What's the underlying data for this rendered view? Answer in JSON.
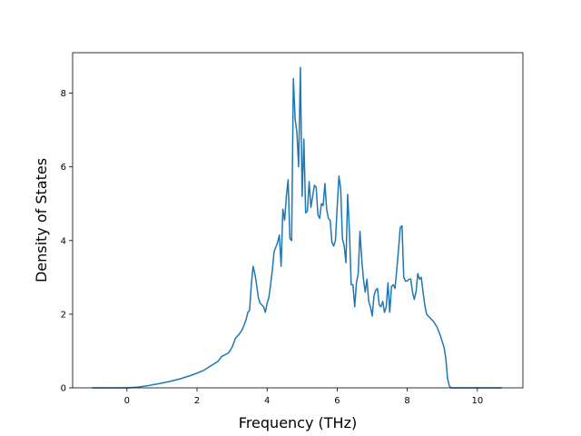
{
  "chart_data": {
    "type": "line",
    "title": "",
    "xlabel": "Frequency (THz)",
    "ylabel": "Density of States",
    "xlim": [
      -1.55,
      11.3
    ],
    "ylim": [
      0,
      9.1
    ],
    "xticks": [
      0,
      2,
      4,
      6,
      8,
      10
    ],
    "yticks": [
      0,
      2,
      4,
      6,
      8
    ],
    "grid": false,
    "line_color": "#1f77b4",
    "series": [
      {
        "points": [
          [
            -1.0,
            0
          ],
          [
            -0.5,
            0
          ],
          [
            0.0,
            0
          ],
          [
            0.3,
            0.02
          ],
          [
            0.6,
            0.06
          ],
          [
            0.9,
            0.11
          ],
          [
            1.2,
            0.17
          ],
          [
            1.5,
            0.24
          ],
          [
            1.8,
            0.33
          ],
          [
            2.0,
            0.4
          ],
          [
            2.2,
            0.48
          ],
          [
            2.4,
            0.6
          ],
          [
            2.6,
            0.72
          ],
          [
            2.7,
            0.85
          ],
          [
            2.9,
            0.95
          ],
          [
            3.0,
            1.1
          ],
          [
            3.1,
            1.35
          ],
          [
            3.2,
            1.45
          ],
          [
            3.3,
            1.6
          ],
          [
            3.4,
            1.85
          ],
          [
            3.45,
            2.05
          ],
          [
            3.5,
            2.1
          ],
          [
            3.55,
            2.8
          ],
          [
            3.6,
            3.3
          ],
          [
            3.65,
            3.1
          ],
          [
            3.7,
            2.8
          ],
          [
            3.75,
            2.45
          ],
          [
            3.8,
            2.3
          ],
          [
            3.85,
            2.25
          ],
          [
            3.9,
            2.2
          ],
          [
            3.95,
            2.05
          ],
          [
            4.0,
            2.3
          ],
          [
            4.05,
            2.45
          ],
          [
            4.1,
            2.8
          ],
          [
            4.15,
            3.2
          ],
          [
            4.2,
            3.7
          ],
          [
            4.3,
            3.95
          ],
          [
            4.35,
            4.15
          ],
          [
            4.4,
            3.3
          ],
          [
            4.45,
            4.85
          ],
          [
            4.5,
            4.55
          ],
          [
            4.55,
            5.2
          ],
          [
            4.6,
            5.65
          ],
          [
            4.65,
            4.05
          ],
          [
            4.7,
            4.0
          ],
          [
            4.75,
            8.4
          ],
          [
            4.8,
            7.3
          ],
          [
            4.85,
            6.95
          ],
          [
            4.9,
            6.0
          ],
          [
            4.95,
            8.7
          ],
          [
            5.0,
            5.2
          ],
          [
            5.05,
            6.75
          ],
          [
            5.1,
            4.75
          ],
          [
            5.15,
            4.8
          ],
          [
            5.2,
            5.6
          ],
          [
            5.25,
            4.9
          ],
          [
            5.3,
            5.2
          ],
          [
            5.35,
            5.5
          ],
          [
            5.4,
            5.45
          ],
          [
            5.45,
            4.7
          ],
          [
            5.5,
            4.6
          ],
          [
            5.55,
            5.0
          ],
          [
            5.6,
            4.95
          ],
          [
            5.65,
            5.55
          ],
          [
            5.7,
            4.85
          ],
          [
            5.75,
            4.6
          ],
          [
            5.8,
            4.55
          ],
          [
            5.85,
            3.95
          ],
          [
            5.9,
            3.85
          ],
          [
            5.95,
            4.0
          ],
          [
            6.0,
            4.9
          ],
          [
            6.05,
            5.75
          ],
          [
            6.1,
            5.4
          ],
          [
            6.15,
            4.05
          ],
          [
            6.2,
            3.85
          ],
          [
            6.25,
            3.4
          ],
          [
            6.3,
            5.25
          ],
          [
            6.35,
            4.25
          ],
          [
            6.4,
            2.8
          ],
          [
            6.45,
            2.8
          ],
          [
            6.5,
            2.2
          ],
          [
            6.55,
            2.85
          ],
          [
            6.6,
            3.1
          ],
          [
            6.65,
            4.25
          ],
          [
            6.7,
            3.5
          ],
          [
            6.75,
            2.95
          ],
          [
            6.8,
            2.6
          ],
          [
            6.85,
            2.95
          ],
          [
            6.9,
            2.35
          ],
          [
            6.95,
            2.2
          ],
          [
            7.0,
            1.95
          ],
          [
            7.05,
            2.5
          ],
          [
            7.1,
            2.65
          ],
          [
            7.15,
            2.7
          ],
          [
            7.2,
            2.25
          ],
          [
            7.25,
            2.2
          ],
          [
            7.3,
            2.35
          ],
          [
            7.35,
            2.05
          ],
          [
            7.4,
            2.2
          ],
          [
            7.45,
            2.85
          ],
          [
            7.5,
            2.05
          ],
          [
            7.55,
            2.75
          ],
          [
            7.6,
            2.8
          ],
          [
            7.65,
            2.7
          ],
          [
            7.7,
            3.2
          ],
          [
            7.75,
            3.75
          ],
          [
            7.8,
            4.35
          ],
          [
            7.85,
            4.4
          ],
          [
            7.9,
            3.0
          ],
          [
            7.95,
            2.9
          ],
          [
            8.0,
            2.9
          ],
          [
            8.05,
            2.95
          ],
          [
            8.1,
            2.95
          ],
          [
            8.15,
            2.6
          ],
          [
            8.2,
            2.4
          ],
          [
            8.25,
            2.6
          ],
          [
            8.3,
            3.1
          ],
          [
            8.35,
            2.95
          ],
          [
            8.4,
            3.0
          ],
          [
            8.45,
            2.6
          ],
          [
            8.5,
            2.25
          ],
          [
            8.55,
            2.0
          ],
          [
            8.65,
            1.9
          ],
          [
            8.75,
            1.8
          ],
          [
            8.85,
            1.65
          ],
          [
            8.95,
            1.4
          ],
          [
            9.05,
            1.1
          ],
          [
            9.1,
            0.8
          ],
          [
            9.15,
            0.25
          ],
          [
            9.2,
            0.05
          ],
          [
            9.25,
            0
          ],
          [
            9.5,
            0
          ],
          [
            10.0,
            0
          ],
          [
            10.7,
            0
          ]
        ]
      }
    ]
  }
}
